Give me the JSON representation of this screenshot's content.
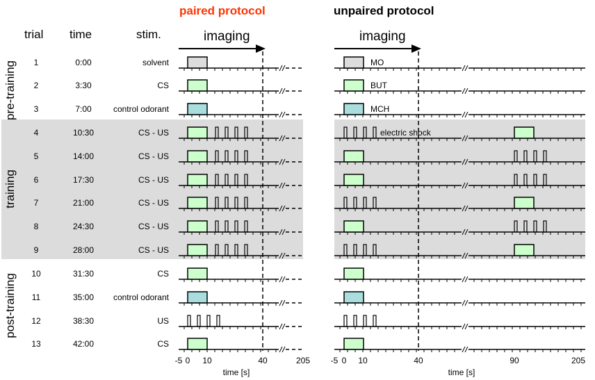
{
  "titles": {
    "paired": "paired protocol",
    "unpaired": "unpaired protocol",
    "paired_color": "#ff3300",
    "unpaired_color": "#000000"
  },
  "headers": {
    "trial": "trial",
    "time": "time",
    "stim": "stim.",
    "imaging": "imaging"
  },
  "phases": [
    "pre-training",
    "training",
    "post-training"
  ],
  "colors": {
    "cs_box": "#ccffcc",
    "control_box": "#aadddd",
    "solvent_box": "#dddddd",
    "shade": "#dcdcdc"
  },
  "labels": {
    "mo": "MO",
    "but": "BUT",
    "mch": "MCH",
    "shock": "electric shock"
  },
  "trials": [
    {
      "trial": "1",
      "time": "0:00",
      "stim": "solvent",
      "paired": [
        {
          "k": "odor",
          "c": "solvent"
        }
      ],
      "unpaired": [
        {
          "k": "odor",
          "c": "solvent",
          "lbl": "mo"
        }
      ]
    },
    {
      "trial": "2",
      "time": "3:30",
      "stim": "CS",
      "paired": [
        {
          "k": "odor",
          "c": "cs"
        }
      ],
      "unpaired": [
        {
          "k": "odor",
          "c": "cs",
          "lbl": "but"
        }
      ]
    },
    {
      "trial": "3",
      "time": "7:00",
      "stim": "control odorant",
      "paired": [
        {
          "k": "odor",
          "c": "control"
        }
      ],
      "unpaired": [
        {
          "k": "odor",
          "c": "control",
          "lbl": "mch"
        }
      ]
    },
    {
      "trial": "4",
      "time": "10:30",
      "stim": "CS - US",
      "paired": [
        {
          "k": "odor",
          "c": "cs"
        },
        {
          "k": "us",
          "s": 10
        }
      ],
      "unpaired": [
        {
          "k": "us",
          "s": -5,
          "lbl": "shock"
        },
        {
          "k": "odor90",
          "c": "cs"
        }
      ]
    },
    {
      "trial": "5",
      "time": "14:00",
      "stim": "CS - US",
      "paired": [
        {
          "k": "odor",
          "c": "cs"
        },
        {
          "k": "us",
          "s": 10
        }
      ],
      "unpaired": [
        {
          "k": "odor",
          "c": "cs"
        },
        {
          "k": "us",
          "s": 90
        }
      ]
    },
    {
      "trial": "6",
      "time": "17:30",
      "stim": "CS - US",
      "paired": [
        {
          "k": "odor",
          "c": "cs"
        },
        {
          "k": "us",
          "s": 10
        }
      ],
      "unpaired": [
        {
          "k": "odor",
          "c": "cs"
        },
        {
          "k": "us",
          "s": 90
        }
      ]
    },
    {
      "trial": "7",
      "time": "21:00",
      "stim": "CS - US",
      "paired": [
        {
          "k": "odor",
          "c": "cs"
        },
        {
          "k": "us",
          "s": 10
        }
      ],
      "unpaired": [
        {
          "k": "us",
          "s": -5
        },
        {
          "k": "odor90",
          "c": "cs"
        }
      ]
    },
    {
      "trial": "8",
      "time": "24:30",
      "stim": "CS - US",
      "paired": [
        {
          "k": "odor",
          "c": "cs"
        },
        {
          "k": "us",
          "s": 10
        }
      ],
      "unpaired": [
        {
          "k": "odor",
          "c": "cs"
        },
        {
          "k": "us",
          "s": 90
        }
      ]
    },
    {
      "trial": "9",
      "time": "28:00",
      "stim": "CS - US",
      "paired": [
        {
          "k": "odor",
          "c": "cs"
        },
        {
          "k": "us",
          "s": 10
        }
      ],
      "unpaired": [
        {
          "k": "us",
          "s": -5
        },
        {
          "k": "odor90",
          "c": "cs"
        }
      ]
    },
    {
      "trial": "10",
      "time": "31:30",
      "stim": "CS",
      "paired": [
        {
          "k": "odor",
          "c": "cs"
        }
      ],
      "unpaired": [
        {
          "k": "odor",
          "c": "cs"
        }
      ]
    },
    {
      "trial": "11",
      "time": "35:00",
      "stim": "control odorant",
      "paired": [
        {
          "k": "odor",
          "c": "control"
        }
      ],
      "unpaired": [
        {
          "k": "odor",
          "c": "control"
        }
      ]
    },
    {
      "trial": "12",
      "time": "38:30",
      "stim": "US",
      "paired": [
        {
          "k": "us",
          "s": -5
        }
      ],
      "unpaired": [
        {
          "k": "us",
          "s": -5
        }
      ]
    },
    {
      "trial": "13",
      "time": "42:00",
      "stim": "CS",
      "paired": [
        {
          "k": "odor",
          "c": "cs"
        }
      ],
      "unpaired": [
        {
          "k": "odor",
          "c": "cs"
        }
      ]
    }
  ],
  "axis": {
    "paired_ticks": [
      "-5",
      "0",
      "10",
      "40",
      "205"
    ],
    "unpaired_ticks": [
      "-5",
      "0",
      "10",
      "40",
      "90",
      "205"
    ],
    "xlabel": "time [s]"
  }
}
